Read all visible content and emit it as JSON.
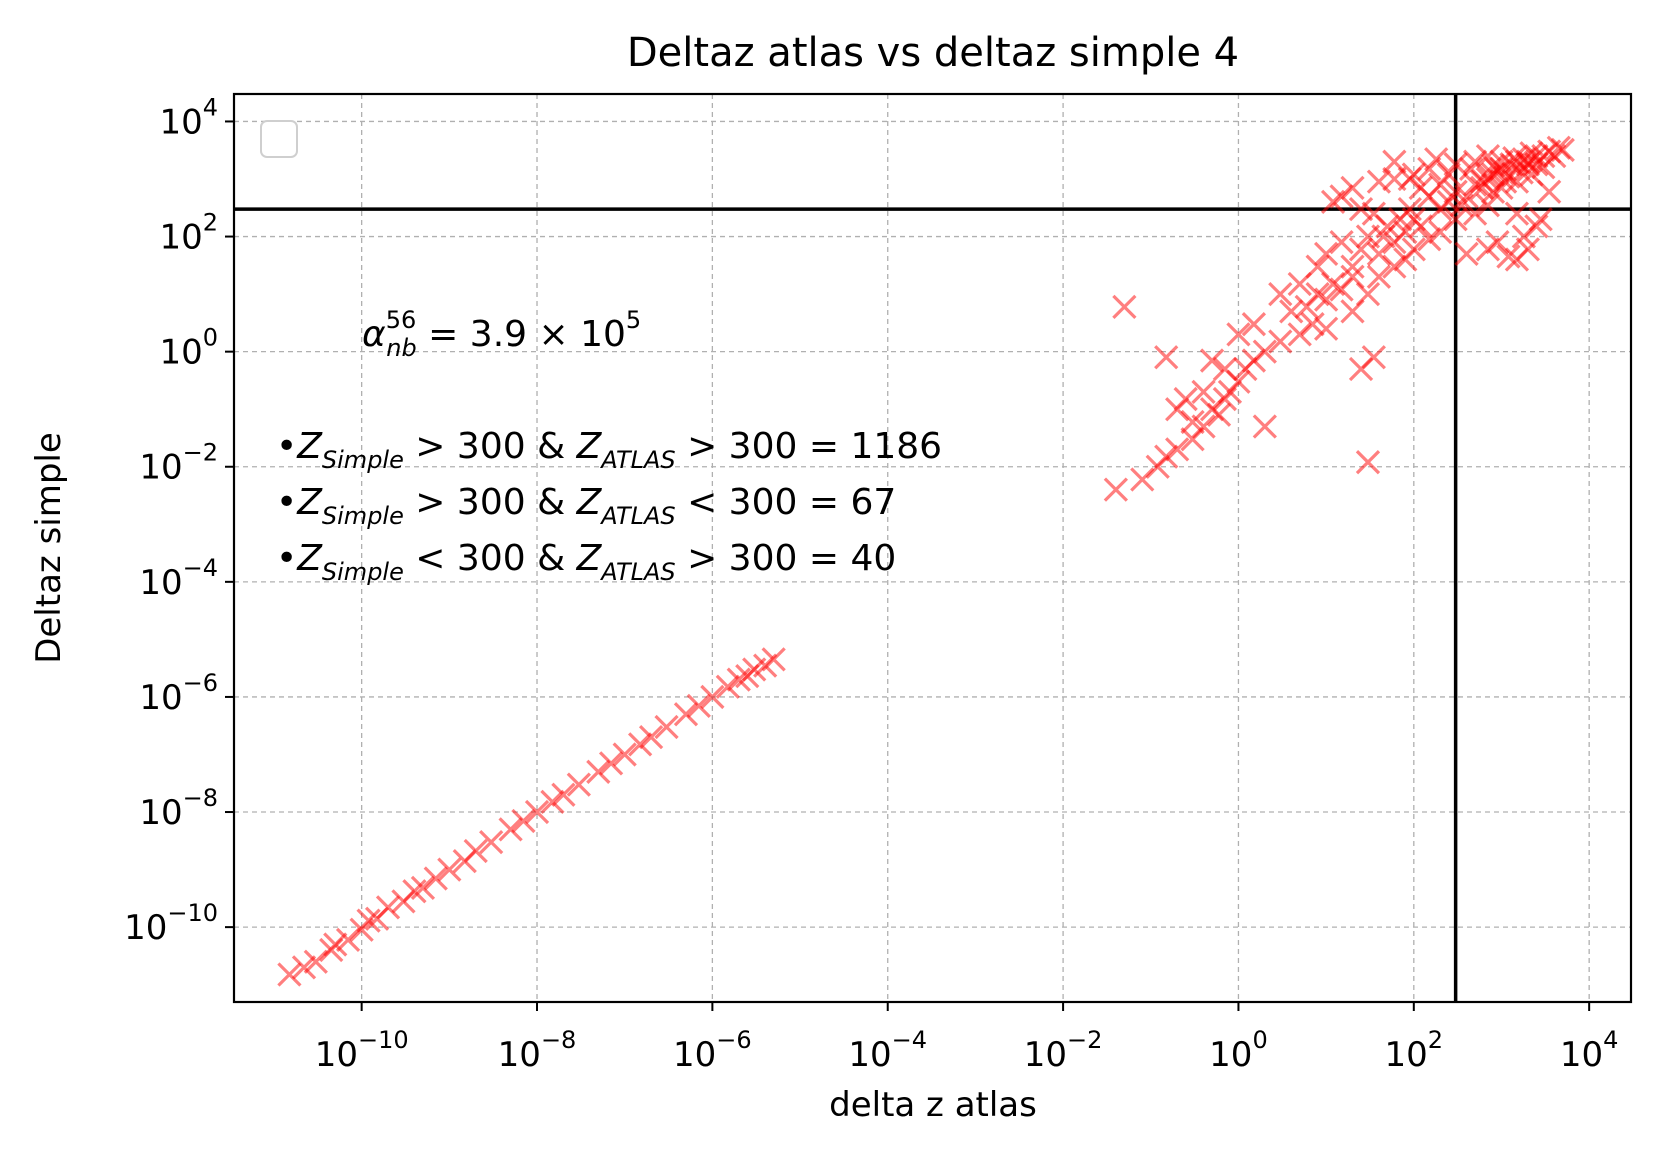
{
  "chart_data": {
    "type": "scatter",
    "title": "Deltaz atlas vs deltaz simple 4",
    "xlabel": "delta z atlas",
    "ylabel": "Deltaz simple",
    "xscale": "log",
    "yscale": "log",
    "xlim": [
      3.5e-12,
      30000
    ],
    "ylim": [
      5e-12,
      30000
    ],
    "grid": true,
    "marker": "x",
    "marker_color": "#ff0000",
    "marker_alpha": 0.5,
    "reference_lines": {
      "vertical_x": 300,
      "horizontal_y": 300,
      "color": "#000000"
    },
    "legend": {
      "placement": "upper-left",
      "entries": []
    },
    "x_ticks": [
      {
        "value": 1e-10,
        "base": "10",
        "exp": "−10"
      },
      {
        "value": 1e-08,
        "base": "10",
        "exp": "−8"
      },
      {
        "value": 1e-06,
        "base": "10",
        "exp": "−6"
      },
      {
        "value": 0.0001,
        "base": "10",
        "exp": "−4"
      },
      {
        "value": 0.01,
        "base": "10",
        "exp": "−2"
      },
      {
        "value": 1,
        "base": "10",
        "exp": "0"
      },
      {
        "value": 100,
        "base": "10",
        "exp": "2"
      },
      {
        "value": 10000,
        "base": "10",
        "exp": "4"
      }
    ],
    "y_ticks": [
      {
        "value": 1e-10,
        "base": "10",
        "exp": "−10"
      },
      {
        "value": 1e-08,
        "base": "10",
        "exp": "−8"
      },
      {
        "value": 1e-06,
        "base": "10",
        "exp": "−6"
      },
      {
        "value": 0.0001,
        "base": "10",
        "exp": "−4"
      },
      {
        "value": 0.01,
        "base": "10",
        "exp": "−2"
      },
      {
        "value": 1,
        "base": "10",
        "exp": "0"
      },
      {
        "value": 100,
        "base": "10",
        "exp": "2"
      },
      {
        "value": 10000,
        "base": "10",
        "exp": "4"
      }
    ],
    "annotations": {
      "alpha": {
        "symbol": "α",
        "sub": "nb",
        "sup": "56",
        "text": " = 3.9 × 10",
        "exp": "5"
      },
      "counts": [
        {
          "bullet": "•",
          "z1": "Z",
          "z1_sub": "Simple",
          "op1": " > 300 & ",
          "z2": "Z",
          "z2_sub": "ATLAS",
          "op2": " > 300 = 1186"
        },
        {
          "bullet": "•",
          "z1": "Z",
          "z1_sub": "Simple",
          "op1": " > 300 & ",
          "z2": "Z",
          "z2_sub": "ATLAS",
          "op2": " < 300 = 67"
        },
        {
          "bullet": "•",
          "z1": "Z",
          "z1_sub": "Simple",
          "op1": " < 300 & ",
          "z2": "Z",
          "z2_sub": "ATLAS",
          "op2": " > 300 = 40"
        }
      ]
    },
    "series": [
      {
        "points": [
          [
            1.5e-11,
            1.5e-11
          ],
          [
            2.2e-11,
            2e-11
          ],
          [
            3e-11,
            2.5e-11
          ],
          [
            4.5e-11,
            4e-11
          ],
          [
            5e-11,
            5e-11
          ],
          [
            7e-11,
            6e-11
          ],
          [
            1e-10,
            9e-11
          ],
          [
            1.2e-10,
            1.3e-10
          ],
          [
            1.5e-10,
            1.4e-10
          ],
          [
            2e-10,
            2.2e-10
          ],
          [
            3e-10,
            2.8e-10
          ],
          [
            4e-10,
            4.2e-10
          ],
          [
            5e-10,
            4.8e-10
          ],
          [
            7e-10,
            7e-10
          ],
          [
            1e-09,
            1e-09
          ],
          [
            1.5e-09,
            1.4e-09
          ],
          [
            2e-09,
            2.1e-09
          ],
          [
            3e-09,
            3e-09
          ],
          [
            5e-09,
            5e-09
          ],
          [
            7e-09,
            7e-09
          ],
          [
            1e-08,
            1e-08
          ],
          [
            1.5e-08,
            1.5e-08
          ],
          [
            2e-08,
            2e-08
          ],
          [
            3e-08,
            3e-08
          ],
          [
            5e-08,
            5e-08
          ],
          [
            7e-08,
            7e-08
          ],
          [
            1e-07,
            1e-07
          ],
          [
            1.5e-07,
            1.5e-07
          ],
          [
            2e-07,
            2e-07
          ],
          [
            3e-07,
            3e-07
          ],
          [
            5e-07,
            5e-07
          ],
          [
            7e-07,
            7e-07
          ],
          [
            1e-06,
            1e-06
          ],
          [
            1.5e-06,
            1.5e-06
          ],
          [
            2e-06,
            2e-06
          ],
          [
            2.5e-06,
            2.3e-06
          ],
          [
            3e-06,
            3e-06
          ],
          [
            4e-06,
            3.5e-06
          ],
          [
            5e-06,
            4.5e-06
          ],
          [
            0.04,
            0.004
          ],
          [
            0.05,
            6
          ],
          [
            0.08,
            0.006
          ],
          [
            0.12,
            0.01
          ],
          [
            0.15,
            0.015
          ],
          [
            0.2,
            0.02
          ],
          [
            0.3,
            0.03
          ],
          [
            0.2,
            0.1
          ],
          [
            0.3,
            0.06
          ],
          [
            0.4,
            0.05
          ],
          [
            0.5,
            0.1
          ],
          [
            0.6,
            0.08
          ],
          [
            0.7,
            0.15
          ],
          [
            0.8,
            0.2
          ],
          [
            1,
            0.3
          ],
          [
            1.2,
            0.5
          ],
          [
            1.5,
            0.7
          ],
          [
            2,
            0.05
          ],
          [
            2,
            1
          ],
          [
            3,
            1.5
          ],
          [
            1.5,
            3
          ],
          [
            1,
            2
          ],
          [
            0.7,
            0.5
          ],
          [
            0.4,
            0.2
          ],
          [
            0.25,
            0.15
          ],
          [
            0.15,
            0.8
          ],
          [
            0.5,
            0.7
          ],
          [
            4,
            5
          ],
          [
            5,
            2
          ],
          [
            6,
            6
          ],
          [
            7,
            3
          ],
          [
            8,
            10
          ],
          [
            10,
            8
          ],
          [
            12,
            15
          ],
          [
            15,
            12
          ],
          [
            20,
            20
          ],
          [
            25,
            0.5
          ],
          [
            30,
            0.012
          ],
          [
            35,
            0.8
          ],
          [
            10,
            2.5
          ],
          [
            20,
            5
          ],
          [
            30,
            10
          ],
          [
            3,
            10
          ],
          [
            5,
            15
          ],
          [
            8,
            30
          ],
          [
            10,
            50
          ],
          [
            15,
            80
          ],
          [
            20,
            30
          ],
          [
            25,
            60
          ],
          [
            30,
            100
          ],
          [
            40,
            50
          ],
          [
            50,
            150
          ],
          [
            60,
            80
          ],
          [
            70,
            200
          ],
          [
            80,
            120
          ],
          [
            90,
            300
          ],
          [
            100,
            200
          ],
          [
            120,
            150
          ],
          [
            150,
            500
          ],
          [
            200,
            300
          ],
          [
            250,
            400
          ],
          [
            300,
            600
          ],
          [
            400,
            500
          ],
          [
            500,
            800
          ],
          [
            600,
            700
          ],
          [
            700,
            1000
          ],
          [
            800,
            1200
          ],
          [
            1000,
            1500
          ],
          [
            1200,
            1100
          ],
          [
            1500,
            2000
          ],
          [
            2000,
            1800
          ],
          [
            2500,
            2500
          ],
          [
            3000,
            2500
          ],
          [
            3500,
            3000
          ],
          [
            4000,
            2500
          ],
          [
            5000,
            3200
          ],
          [
            4500,
            3500
          ],
          [
            2200,
            2800
          ],
          [
            1800,
            2200
          ],
          [
            1300,
            1800
          ],
          [
            900,
            1400
          ],
          [
            600,
            900
          ],
          [
            800,
            600
          ],
          [
            1000,
            700
          ],
          [
            500,
            250
          ],
          [
            300,
            200
          ],
          [
            200,
            120
          ],
          [
            150,
            90
          ],
          [
            100,
            60
          ],
          [
            80,
            40
          ],
          [
            60,
            30
          ],
          [
            40,
            20
          ],
          [
            45,
            100
          ],
          [
            35,
            250
          ],
          [
            25,
            300
          ],
          [
            15,
            500
          ],
          [
            12,
            400
          ],
          [
            20,
            700
          ],
          [
            40,
            900
          ],
          [
            60,
            1000
          ],
          [
            100,
            1200
          ],
          [
            150,
            1500
          ],
          [
            300,
            1800
          ],
          [
            500,
            2000
          ],
          [
            700,
            2500
          ],
          [
            1000,
            2000
          ],
          [
            1400,
            2300
          ],
          [
            2000,
            2000
          ],
          [
            2500,
            1800
          ],
          [
            3000,
            1600
          ],
          [
            400,
            50
          ],
          [
            700,
            60
          ],
          [
            1200,
            45
          ],
          [
            1500,
            40
          ],
          [
            2000,
            60
          ],
          [
            1800,
            100
          ],
          [
            2500,
            150
          ],
          [
            1500,
            250
          ],
          [
            900,
            80
          ],
          [
            2800,
            200
          ],
          [
            3500,
            600
          ],
          [
            1500,
            900
          ],
          [
            2200,
            1200
          ],
          [
            700,
            350
          ],
          [
            350,
            350
          ],
          [
            200,
            800
          ],
          [
            120,
            700
          ],
          [
            90,
            1000
          ],
          [
            60,
            2000
          ],
          [
            180,
            2200
          ],
          [
            250,
            1200
          ],
          [
            450,
            1500
          ],
          [
            800,
            1700
          ],
          [
            1100,
            900
          ],
          [
            1700,
            1300
          ]
        ]
      }
    ]
  }
}
